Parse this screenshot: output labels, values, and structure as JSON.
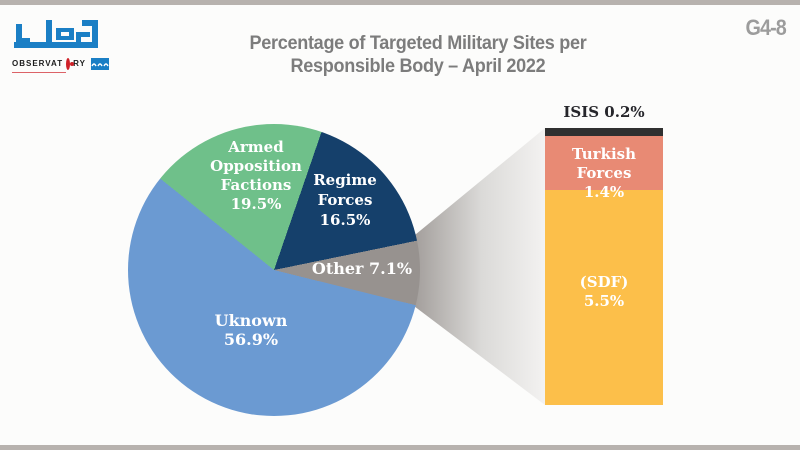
{
  "page": {
    "code": "G4-8",
    "title_line1": "Percentage of Targeted Military Sites per",
    "title_line2": "Responsible Body – April 2022"
  },
  "logo": {
    "brand_arabic": "مرصد",
    "latin_left": "OBSERVAT",
    "latin_right": "RY",
    "brand_blue": "#1b7fc5",
    "target_red": "#cf2128"
  },
  "chart_data": {
    "type": "pie",
    "title": "Percentage of Targeted Military Sites per Responsible Body – April 2022",
    "start_angle_deg": 19,
    "legend": "none",
    "slices": [
      {
        "name": "Regime Forces",
        "value": 16.5,
        "color": "#15406b",
        "lines": [
          "Regime",
          "Forces",
          "16.5%"
        ]
      },
      {
        "name": "Other",
        "value": 7.1,
        "color": "#97928f",
        "label": "Other 7.1%"
      },
      {
        "name": "Uknown",
        "value": 56.9,
        "color": "#6b9ad2",
        "lines": [
          "Uknown",
          "56.9%"
        ]
      },
      {
        "name": "Armed Opposition Factions",
        "value": 19.5,
        "color": "#6fc08a",
        "lines": [
          "Armed",
          "Opposition",
          "Factions",
          "19.5%"
        ]
      }
    ],
    "breakout_bar": {
      "parent": "Other",
      "total": 7.1,
      "segments": [
        {
          "name": "ISIS",
          "value": 0.2,
          "color": "#303030",
          "label": "ISIS 0.2%"
        },
        {
          "name": "Turkish Forces",
          "value": 1.4,
          "color": "#e88a74",
          "lines": [
            "Turkish Forces",
            "1.4%"
          ]
        },
        {
          "name": "SDF",
          "value": 5.5,
          "color": "#fcbf4a",
          "lines": [
            "(SDF)",
            "5.5%"
          ]
        }
      ]
    }
  }
}
